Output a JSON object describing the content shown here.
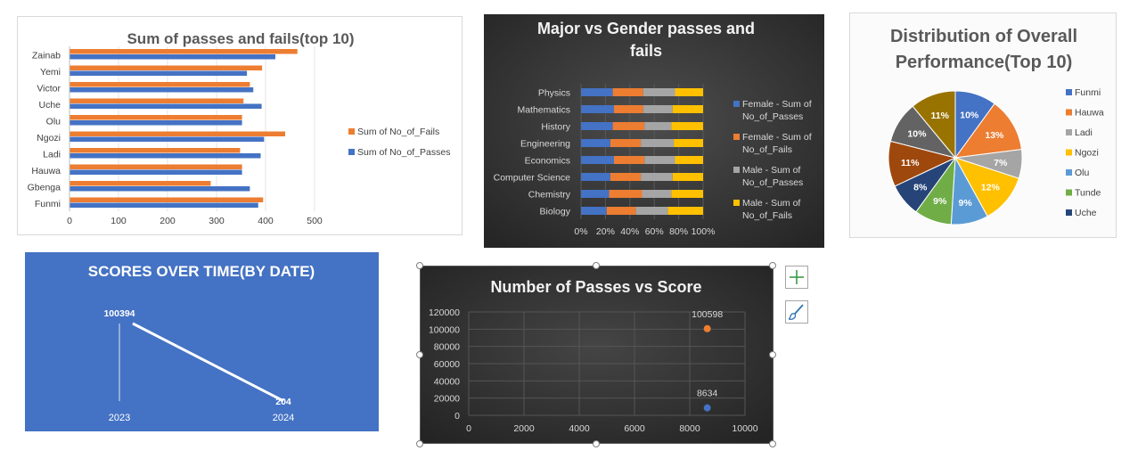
{
  "chart_data": [
    {
      "id": "passes_fails_top10",
      "type": "bar",
      "orientation": "horizontal",
      "title": "Sum of passes and fails(top 10)",
      "categories": [
        "Funmi",
        "Gbenga",
        "Hauwa",
        "Ladi",
        "Ngozi",
        "Olu",
        "Uche",
        "Victor",
        "Yemi",
        "Zainab"
      ],
      "series": [
        {
          "name": "Sum of No_of_Passes",
          "color": "#4472c4",
          "values": [
            385,
            368,
            352,
            390,
            397,
            352,
            392,
            375,
            362,
            420
          ]
        },
        {
          "name": "Sum of No_of_Fails",
          "color": "#ed7d31",
          "values": [
            395,
            288,
            352,
            348,
            440,
            352,
            355,
            368,
            393,
            465
          ]
        }
      ],
      "xticks": [
        "0",
        "100",
        "200",
        "300",
        "400",
        "500"
      ],
      "xlim": [
        0,
        500
      ],
      "legend": "right"
    },
    {
      "id": "major_gender",
      "type": "bar",
      "orientation": "horizontal",
      "stacked": "100%",
      "title": "Major vs Gender passes and fails",
      "categories": [
        "Biology",
        "Chemistry",
        "Computer Science",
        "Economics",
        "Engineering",
        "History",
        "Mathematics",
        "Physics"
      ],
      "series": [
        {
          "name": "Female - Sum of No_of_Passes",
          "color": "#4472c4",
          "values": [
            21,
            23,
            24,
            27,
            24,
            26,
            27,
            26
          ]
        },
        {
          "name": "Female - Sum of No_of_Fails",
          "color": "#ed7d31",
          "values": [
            24,
            27,
            25,
            25,
            25,
            26,
            24,
            25
          ]
        },
        {
          "name": "Male - Sum of No_of_Passes",
          "color": "#a5a5a5",
          "values": [
            26,
            24,
            26,
            25,
            27,
            22,
            24,
            26
          ]
        },
        {
          "name": "Male - Sum of No_of_Fails",
          "color": "#ffc000",
          "values": [
            29,
            26,
            25,
            23,
            24,
            26,
            25,
            23
          ]
        }
      ],
      "xticks": [
        "0%",
        "20%",
        "40%",
        "60%",
        "80%",
        "100%"
      ],
      "xlim": [
        0,
        100
      ],
      "legend": "right"
    },
    {
      "id": "overall_performance",
      "type": "pie",
      "title": "Distribution of Overall Performance(Top 10)",
      "slices": [
        {
          "name": "Funmi",
          "value": 10,
          "label": "10%",
          "color": "#4472c4"
        },
        {
          "name": "Hauwa",
          "value": 13,
          "label": "13%",
          "color": "#ed7d31"
        },
        {
          "name": "Ladi",
          "value": 7,
          "label": "7%",
          "color": "#a5a5a5"
        },
        {
          "name": "Ngozi",
          "value": 12,
          "label": "12%",
          "color": "#ffc000"
        },
        {
          "name": "Olu",
          "value": 9,
          "label": "9%",
          "color": "#5b9bd5"
        },
        {
          "name": "Tunde",
          "value": 9,
          "label": "9%",
          "color": "#70ad47"
        },
        {
          "name": "Uche",
          "value": 8,
          "label": "8%",
          "color": "#264478"
        },
        {
          "name": "",
          "value": 11,
          "label": "11%",
          "color": "#9e480e"
        },
        {
          "name": "",
          "value": 10,
          "label": "10%",
          "color": "#636363"
        },
        {
          "name": "",
          "value": 11,
          "label": "11%",
          "color": "#997300"
        }
      ],
      "legend": "right"
    },
    {
      "id": "scores_over_time",
      "type": "line",
      "title": "SCORES OVER TIME(BY DATE)",
      "categories": [
        "2023",
        "2024"
      ],
      "values": [
        100394,
        204
      ],
      "data_labels": [
        "100394",
        "204"
      ]
    },
    {
      "id": "passes_vs_score",
      "type": "scatter",
      "title": "Number of Passes vs Score",
      "points": [
        {
          "x": 8634,
          "y": 100598,
          "label": "100598",
          "color": "#ed7d31"
        },
        {
          "x": 8634,
          "y": 8634,
          "label": "8634",
          "color": "#4472c4"
        }
      ],
      "xticks": [
        "0",
        "2000",
        "4000",
        "6000",
        "8000",
        "10000"
      ],
      "yticks": [
        "0",
        "20000",
        "40000",
        "60000",
        "80000",
        "100000",
        "120000"
      ],
      "xlim": [
        0,
        10000
      ],
      "ylim": [
        0,
        120000
      ],
      "grid": true
    }
  ]
}
